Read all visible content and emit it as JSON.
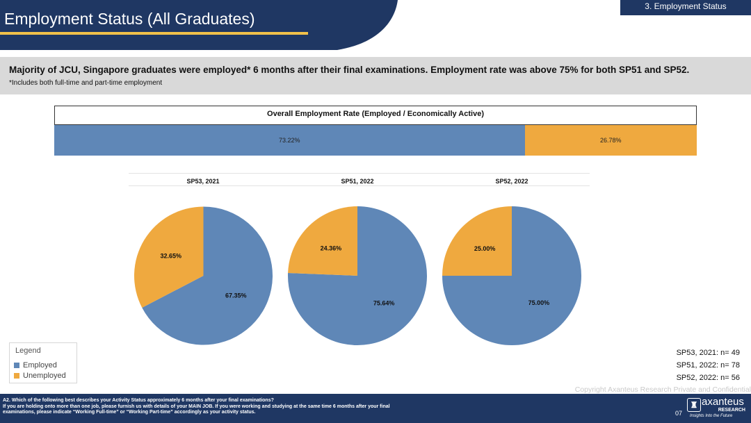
{
  "header": {
    "title": "Employment Status (All Graduates)",
    "section": "3. Employment Status"
  },
  "banner": {
    "headline": "Majority of JCU, Singapore graduates were employed* 6 months after their final examinations. Employment rate was above 75% for both SP51 and SP52.",
    "footnote": "*Includes both full-time and part-time employment"
  },
  "colors": {
    "employed": "#5f87b7",
    "unemployed": "#efa93f",
    "navy": "#1f3763",
    "gold": "#f1c14a"
  },
  "chart_data": [
    {
      "type": "bar",
      "stacked": true,
      "orientation": "horizontal",
      "title": "Overall Employment Rate (Employed / Economically Active)",
      "series": [
        {
          "name": "Employed",
          "values": [
            73.22
          ],
          "label": "73.22%"
        },
        {
          "name": "Unemployed",
          "values": [
            26.78
          ],
          "label": "26.78%"
        }
      ]
    },
    {
      "type": "pie",
      "title": "SP53, 2021",
      "labels": [
        "Employed",
        "Unemployed"
      ],
      "values": [
        67.35,
        32.65
      ],
      "value_labels": [
        "67.35%",
        "32.65%"
      ]
    },
    {
      "type": "pie",
      "title": "SP51, 2022",
      "labels": [
        "Employed",
        "Unemployed"
      ],
      "values": [
        75.64,
        24.36
      ],
      "value_labels": [
        "75.64%",
        "24.36%"
      ]
    },
    {
      "type": "pie",
      "title": "SP52, 2022",
      "labels": [
        "Employed",
        "Unemployed"
      ],
      "values": [
        75.0,
        25.0
      ],
      "value_labels": [
        "75.00%",
        "25.00%"
      ]
    }
  ],
  "legend": {
    "title": "Legend",
    "items": [
      "Employed",
      "Unemployed"
    ]
  },
  "sample_sizes": [
    "SP53, 2021: n= 49",
    "SP51, 2022: n= 78",
    "SP52, 2022: n= 56"
  ],
  "copyright": "Copyright Axanteus Research Private and Confidential",
  "footer": {
    "question_lines": [
      "A2. Which of the following best describes your Activity Status approximately 6 months after your final examinations?",
      "If you are holding onto more than one job, please furnish us with details of your MAIN JOB. If you were working and studying at the same time 6 months after your final",
      "examinations, please indicate “Working Full-time” or “Working Part-time” accordingly as your activity status."
    ],
    "page_number": "07",
    "logo_name": "axanteus",
    "logo_sub": "RESEARCH",
    "logo_tagline": "Insights Into the Future"
  }
}
